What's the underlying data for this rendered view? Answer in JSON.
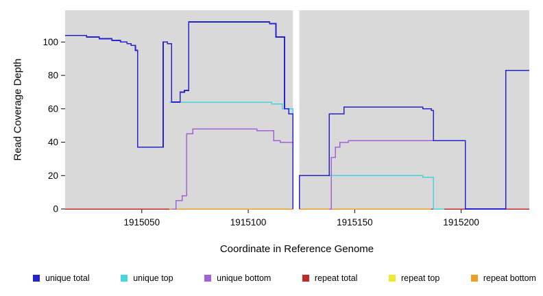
{
  "axes": {
    "y_label": "Read Coverage Depth",
    "x_label": "Coordinate in Reference Genome"
  },
  "legend": {
    "items": [
      {
        "label": "unique total",
        "color": "#2424CC"
      },
      {
        "label": "unique top",
        "color": "#45D4E0"
      },
      {
        "label": "unique bottom",
        "color": "#A361D6"
      },
      {
        "label": "repeat total",
        "color": "#C62828"
      },
      {
        "label": "repeat top",
        "color": "#EFE92E"
      },
      {
        "label": "repeat bottom",
        "color": "#EF9F28"
      }
    ]
  },
  "chart_data": {
    "type": "line",
    "step": true,
    "title": "",
    "xlabel": "Coordinate in Reference Genome",
    "ylabel": "Read Coverage Depth",
    "xlim": [
      1915014,
      1915232
    ],
    "ylim": [
      0,
      119
    ],
    "x_ticks": [
      1915050,
      1915100,
      1915150,
      1915200
    ],
    "y_ticks": [
      0,
      20,
      40,
      60,
      80,
      100
    ],
    "grid": false,
    "legend_position": "bottom",
    "panel_bg": "#D9D9D9",
    "gap_region": {
      "x0": 1915121,
      "x1": 1915124,
      "color": "#FFFFFF"
    },
    "draw_order": [
      4,
      3,
      5,
      1,
      2,
      0
    ],
    "series": [
      {
        "name": "unique total",
        "color": "#2424CC",
        "width": 1.7,
        "segments": [
          [
            [
              1915014,
              104
            ],
            [
              1915024,
              103
            ],
            [
              1915030,
              102
            ],
            [
              1915036,
              101
            ],
            [
              1915040,
              100
            ],
            [
              1915043,
              99
            ],
            [
              1915045,
              98
            ],
            [
              1915047,
              95
            ],
            [
              1915048,
              37
            ],
            [
              1915060,
              100
            ],
            [
              1915062,
              99
            ],
            [
              1915064,
              64
            ],
            [
              1915068,
              70
            ],
            [
              1915070,
              71
            ],
            [
              1915072,
              112
            ],
            [
              1915110,
              111
            ],
            [
              1915113,
              103
            ],
            [
              1915117,
              60
            ],
            [
              1915119,
              57
            ],
            [
              1915121,
              0
            ]
          ],
          [
            [
              1915124,
              0
            ],
            [
              1915124,
              20
            ],
            [
              1915138,
              57
            ],
            [
              1915145,
              61
            ],
            [
              1915182,
              60
            ],
            [
              1915186,
              59
            ],
            [
              1915187,
              41
            ],
            [
              1915202,
              0
            ],
            [
              1915221,
              0
            ],
            [
              1915221,
              83
            ],
            [
              1915232,
              83
            ]
          ]
        ]
      },
      {
        "name": "unique top",
        "color": "#45D4E0",
        "width": 1.5,
        "segments": [
          [
            [
              1915063,
              64
            ],
            [
              1915111,
              63
            ],
            [
              1915116,
              60
            ],
            [
              1915121,
              0
            ]
          ],
          [
            [
              1915124,
              0
            ],
            [
              1915124,
              20
            ],
            [
              1915182,
              19
            ],
            [
              1915187,
              0
            ],
            [
              1915192,
              0
            ]
          ]
        ]
      },
      {
        "name": "unique bottom",
        "color": "#A361D6",
        "width": 1.5,
        "segments": [
          [
            [
              1915064,
              0
            ],
            [
              1915066,
              5
            ],
            [
              1915069,
              8
            ],
            [
              1915071,
              45
            ],
            [
              1915074,
              48
            ],
            [
              1915104,
              47
            ],
            [
              1915112,
              41
            ],
            [
              1915115,
              40
            ],
            [
              1915121,
              0
            ]
          ],
          [
            [
              1915138,
              0
            ],
            [
              1915139,
              31
            ],
            [
              1915141,
              37
            ],
            [
              1915143,
              40
            ],
            [
              1915147,
              41
            ],
            [
              1915202,
              41
            ],
            [
              1915202,
              0
            ]
          ]
        ]
      },
      {
        "name": "repeat total",
        "color": "#C62828",
        "width": 1.5,
        "segments": [
          [
            [
              1915014,
              0
            ],
            [
              1915121,
              0
            ]
          ],
          [
            [
              1915124,
              0
            ],
            [
              1915232,
              0
            ]
          ]
        ]
      },
      {
        "name": "repeat top",
        "color": "#EFE92E",
        "width": 1.5,
        "segments": [
          [
            [
              1915014,
              0
            ],
            [
              1915121,
              0
            ]
          ],
          [
            [
              1915124,
              0
            ],
            [
              1915232,
              0
            ]
          ]
        ]
      },
      {
        "name": "repeat bottom",
        "color": "#EF9F28",
        "width": 1.5,
        "segments": [
          [
            [
              1915063,
              0
            ],
            [
              1915121,
              0
            ]
          ],
          [
            [
              1915124,
              0
            ],
            [
              1915186,
              0
            ]
          ]
        ]
      }
    ]
  }
}
